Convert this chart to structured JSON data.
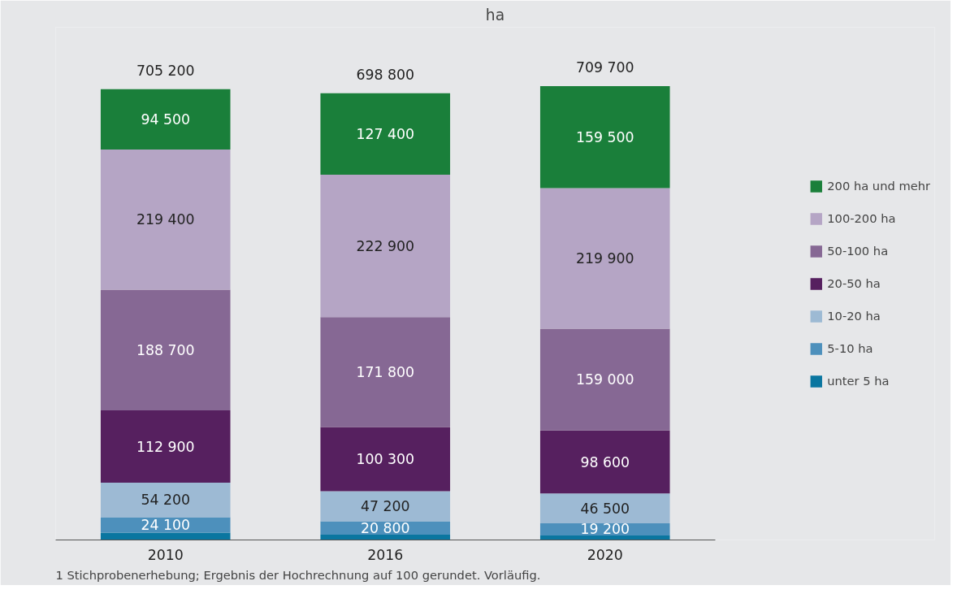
{
  "chart_data": {
    "type": "bar",
    "stacked": true,
    "title": "ha",
    "categories": [
      "2010",
      "2016",
      "2020"
    ],
    "series": [
      {
        "name": "unter 5 ha",
        "color": "#0a76a0",
        "values": [
          11400,
          8400,
          7000
        ],
        "value_labels": [
          null,
          null,
          null
        ]
      },
      {
        "name": "5-10 ha",
        "color": "#4d90bc",
        "values": [
          24100,
          20800,
          19200
        ],
        "value_labels": [
          "24 100",
          "20 800",
          "19 200"
        ]
      },
      {
        "name": "10-20 ha",
        "color": "#9dbad4",
        "values": [
          54200,
          47200,
          46500
        ],
        "value_labels": [
          "54 200",
          "47 200",
          "46 500"
        ]
      },
      {
        "name": "20-50 ha",
        "color": "#56205f",
        "values": [
          112900,
          100300,
          98600
        ],
        "value_labels": [
          "112 900",
          "100 300",
          "98 600"
        ]
      },
      {
        "name": "50-100 ha",
        "color": "#866894",
        "values": [
          188700,
          171800,
          159000
        ],
        "value_labels": [
          "188 700",
          "171 800",
          "159 000"
        ]
      },
      {
        "name": "100-200 ha",
        "color": "#b5a5c5",
        "values": [
          219400,
          222900,
          219900
        ],
        "value_labels": [
          "219 400",
          "222 900",
          "219 900"
        ]
      },
      {
        "name": "200 ha und mehr",
        "color": "#1a7f3a",
        "values": [
          94500,
          127400,
          159500
        ],
        "value_labels": [
          "94 500",
          "127 400",
          "159 500"
        ]
      }
    ],
    "totals": [
      "705 200",
      "698 800",
      "709 700"
    ],
    "legend": "right",
    "annotations": [
      "1 Stichprobenerhebung; Ergebnis der Hochrechnung auf 100 gerundet. Vorläufig."
    ]
  }
}
